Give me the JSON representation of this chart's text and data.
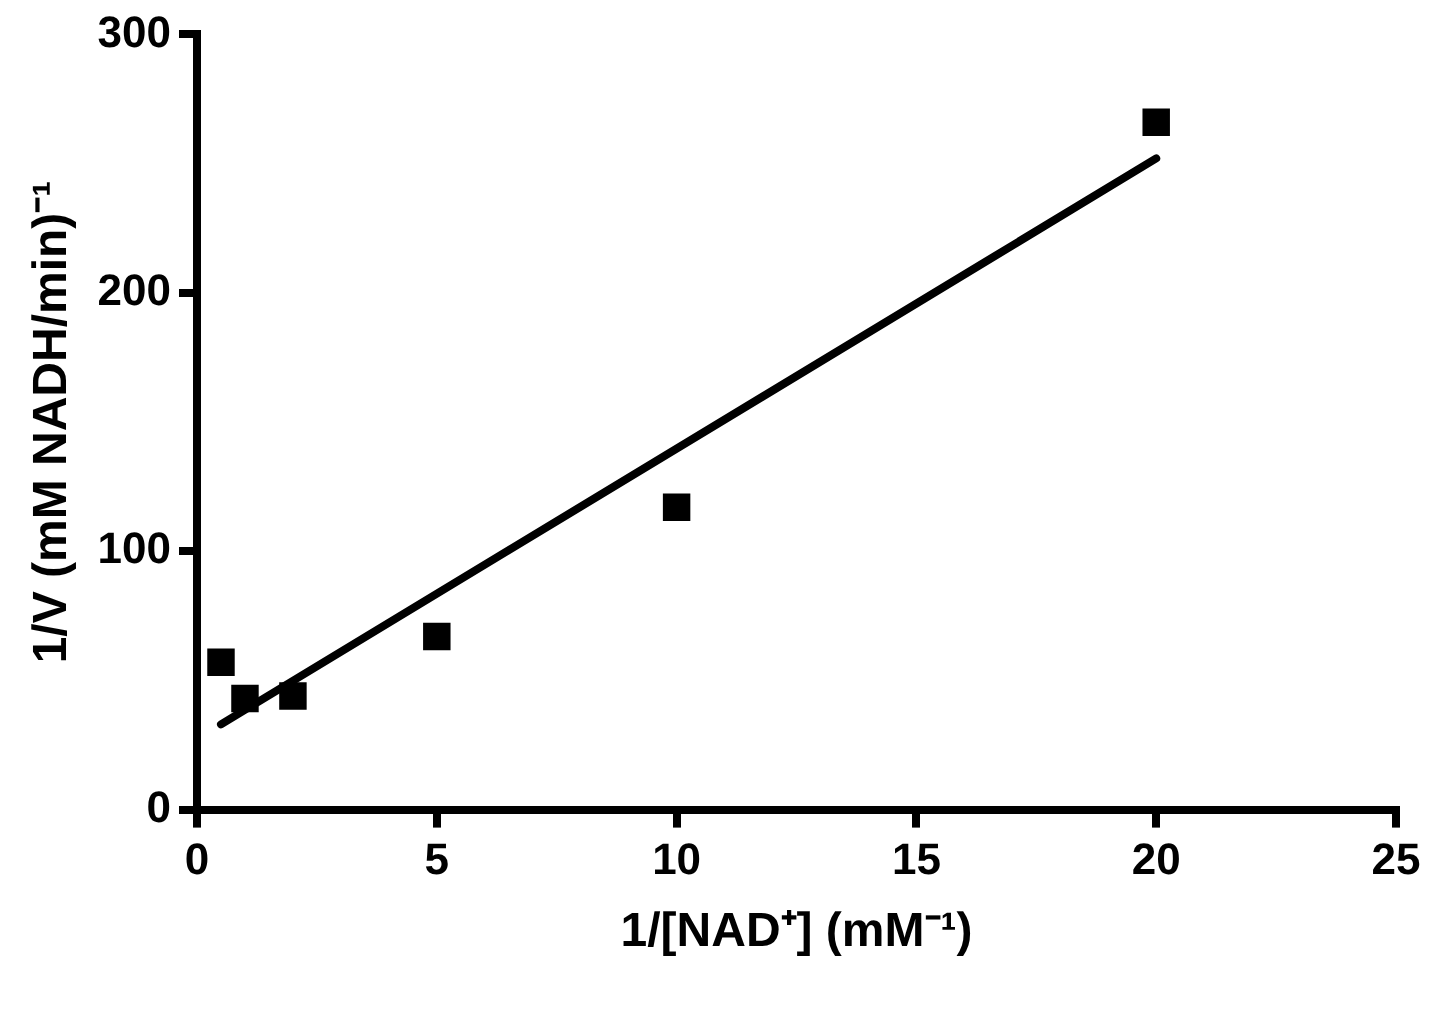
{
  "chart_data": {
    "type": "scatter",
    "xlabel": "1/[NAD⁺] (mM⁻¹)",
    "ylabel": "1/V (mM NADH/min)⁻¹",
    "xlim": [
      0,
      25
    ],
    "xticks": [
      0,
      5,
      10,
      15,
      20,
      25
    ],
    "ylim": [
      0,
      300
    ],
    "yticks": [
      0,
      100,
      200,
      300
    ],
    "grid": false,
    "legend": false,
    "marker": "square",
    "series": [
      {
        "color": "#000000",
        "x": [
          0.5,
          1,
          2,
          5,
          10,
          20
        ],
        "values": [
          57,
          43,
          44,
          67,
          117,
          266
        ]
      },
      {
        "type": "line",
        "color": "#000000",
        "marker": "none",
        "x": [
          0.5,
          20
        ],
        "values": [
          33,
          252
        ]
      }
    ]
  }
}
